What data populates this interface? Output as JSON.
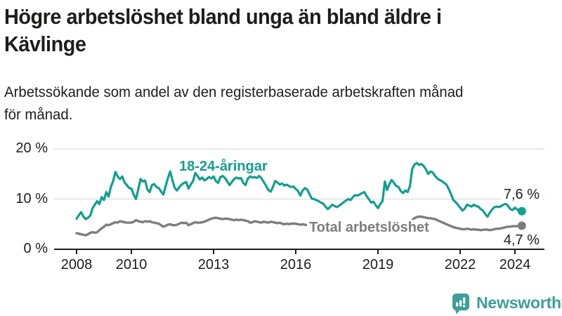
{
  "header": {
    "title_line1": "Högre arbetslöshet bland unga än bland äldre i",
    "title_line2": "Kävlinge",
    "subtitle_line1": "Arbetssökande som andel av den registerbaserade arbetskraften månad",
    "subtitle_line2": "för månad."
  },
  "chart_data": {
    "type": "line",
    "title": "Högre arbetslöshet bland unga än bland äldre i Kävlinge",
    "subtitle": "Arbetssökande som andel av den registerbaserade arbetskraften månad för månad.",
    "x_start_year": 2008,
    "x_start_month": 1,
    "x_step": "monthly",
    "x_end_label": "2024-04",
    "ylim": [
      0,
      20
    ],
    "grid": "horizontal",
    "y_ticks": [
      {
        "value": 20,
        "label": "20 %"
      },
      {
        "value": 10,
        "label": "10 %"
      },
      {
        "value": 0,
        "label": "0 %"
      }
    ],
    "x_ticks": [
      2008,
      2010,
      2013,
      2016,
      2019,
      2022,
      2024
    ],
    "series": [
      {
        "name": "18-24-åringar",
        "color": "#129e90",
        "end_label": "7,6 %",
        "end_value": 7.6,
        "values": [
          6.1,
          6.8,
          7.4,
          6.5,
          6.0,
          6.3,
          6.7,
          8.2,
          8.9,
          9.6,
          9.0,
          10.4,
          9.8,
          11.4,
          10.5,
          12.4,
          13.6,
          15.4,
          14.5,
          14.0,
          14.5,
          13.3,
          12.8,
          12.2,
          12.1,
          10.9,
          10.0,
          11.9,
          14.0,
          13.5,
          13.7,
          11.9,
          11.4,
          12.8,
          13.0,
          12.4,
          12.2,
          11.5,
          10.9,
          12.6,
          14.2,
          15.5,
          13.7,
          12.2,
          11.7,
          12.4,
          12.9,
          13.2,
          13.4,
          12.1,
          12.9,
          13.6,
          15.2,
          14.6,
          13.9,
          14.3,
          13.7,
          14.0,
          14.4,
          14.1,
          14.5,
          13.6,
          13.2,
          14.4,
          14.6,
          14.2,
          13.5,
          12.8,
          13.4,
          14.0,
          14.3,
          14.1,
          14.2,
          13.2,
          12.8,
          14.1,
          14.5,
          14.3,
          14.4,
          14.2,
          14.6,
          14.1,
          13.4,
          12.6,
          11.8,
          11.5,
          12.4,
          13.6,
          13.3,
          12.9,
          13.1,
          12.7,
          12.9,
          12.6,
          12.4,
          12.5,
          12.0,
          11.6,
          10.7,
          11.7,
          12.2,
          11.9,
          11.0,
          10.1,
          10.0,
          9.8,
          9.6,
          9.3,
          9.1,
          8.5,
          8.0,
          8.4,
          8.9,
          8.6,
          8.4,
          8.7,
          9.0,
          9.4,
          9.7,
          10.0,
          9.8,
          10.4,
          10.8,
          10.7,
          10.9,
          11.2,
          11.4,
          10.6,
          10.0,
          9.3,
          9.5,
          8.8,
          8.2,
          9.0,
          9.6,
          13.5,
          11.8,
          13.0,
          13.8,
          13.2,
          12.6,
          12.4,
          11.6,
          11.2,
          11.7,
          11.4,
          12.6,
          16.0,
          16.9,
          17.2,
          16.8,
          17.0,
          16.6,
          15.9,
          15.0,
          15.5,
          15.3,
          14.6,
          14.1,
          13.8,
          13.6,
          13.2,
          12.9,
          12.0,
          11.0,
          9.8,
          9.4,
          8.9,
          8.3,
          7.7,
          8.1,
          8.9,
          8.7,
          8.5,
          8.9,
          8.6,
          8.5,
          8.0,
          7.7,
          7.0,
          6.5,
          7.3,
          7.9,
          8.4,
          8.5,
          8.4,
          8.6,
          8.9,
          9.1,
          8.6,
          8.0,
          7.8,
          8.3,
          7.9,
          7.7,
          7.6
        ]
      },
      {
        "name": "Total arbetslöshet",
        "color": "#7d7d7d",
        "end_label": "4,7 %",
        "end_value": 4.7,
        "values": [
          3.2,
          3.1,
          3.0,
          2.9,
          2.8,
          3.0,
          3.3,
          3.4,
          3.3,
          3.4,
          3.8,
          4.2,
          4.5,
          4.9,
          4.8,
          5.0,
          5.2,
          5.4,
          5.3,
          5.6,
          5.5,
          5.4,
          5.3,
          5.3,
          5.3,
          5.5,
          5.8,
          5.6,
          5.5,
          5.4,
          5.6,
          5.5,
          5.6,
          5.4,
          5.3,
          5.2,
          5.1,
          4.8,
          4.5,
          4.7,
          4.9,
          5.0,
          4.8,
          4.8,
          4.9,
          5.1,
          5.3,
          5.2,
          5.3,
          4.8,
          5.0,
          5.2,
          5.4,
          5.3,
          5.3,
          5.4,
          5.5,
          5.7,
          5.9,
          6.1,
          6.2,
          6.3,
          6.2,
          6.1,
          6.0,
          6.1,
          6.1,
          6.0,
          5.9,
          5.8,
          5.9,
          5.8,
          5.9,
          5.8,
          5.7,
          5.6,
          5.3,
          5.4,
          5.6,
          5.5,
          5.4,
          5.3,
          5.5,
          5.4,
          5.3,
          5.5,
          5.4,
          5.3,
          5.2,
          5.3,
          5.1,
          5.0,
          5.1,
          5.0,
          5.1,
          5.1,
          5.1,
          5.0,
          4.9,
          5.0,
          4.9,
          4.8,
          4.6,
          4.5,
          4.4,
          4.4,
          4.3,
          4.3,
          4.3,
          4.2,
          4.2,
          4.1,
          4.1,
          4.2,
          4.1,
          4.0,
          4.0,
          3.9,
          4.0,
          4.0,
          3.9,
          3.9,
          3.8,
          3.9,
          3.8,
          3.9,
          4.0,
          3.9,
          3.8,
          3.9,
          3.9,
          4.0,
          4.0,
          4.1,
          4.0,
          4.1,
          4.2,
          4.2,
          4.3,
          4.2,
          4.3,
          4.3,
          4.4,
          4.5,
          4.6,
          4.7,
          5.1,
          5.8,
          6.2,
          6.4,
          6.5,
          6.5,
          6.4,
          6.3,
          6.2,
          6.2,
          6.1,
          6.0,
          5.8,
          5.6,
          5.4,
          5.2,
          5.0,
          4.8,
          4.6,
          4.4,
          4.3,
          4.2,
          4.1,
          4.0,
          4.0,
          4.1,
          4.0,
          3.9,
          4.0,
          3.9,
          3.9,
          3.8,
          3.9,
          3.9,
          3.9,
          3.8,
          3.9,
          4.0,
          4.1,
          4.1,
          4.2,
          4.3,
          4.4,
          4.5,
          4.5,
          4.6,
          4.6,
          4.6,
          4.7,
          4.7
        ]
      }
    ],
    "colors": {
      "axis": "#1d1d1b",
      "gridline": "#dcdcdc",
      "text": "#1d1d1b"
    }
  },
  "footer": {
    "brand": "Newsworthy",
    "brand_color": "#3f9e98",
    "logo_icon": "bar-chart-speech-bubble"
  }
}
